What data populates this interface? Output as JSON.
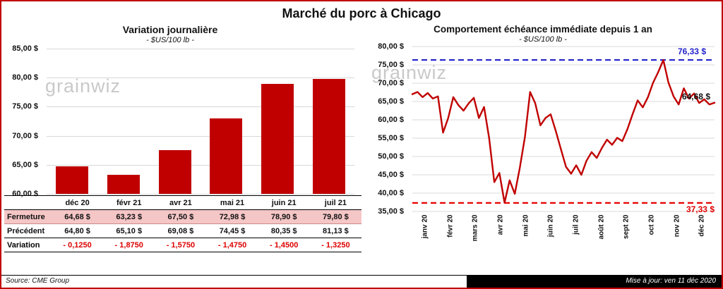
{
  "page": {
    "title": "Marché du porc à Chicago",
    "source": "Source: CME Group",
    "updated": "Mise à jour: ven 11 déc 2020",
    "watermark": "grainwiz"
  },
  "colors": {
    "accent_red": "#C00000",
    "dashed_blue": "#2323CC",
    "dashed_red": "#E80000",
    "pink_row": "#F5C6C6",
    "grid": "#D8D8D8"
  },
  "chart_data": [
    {
      "type": "bar",
      "title": "Variation journalière",
      "subtitle": "- $US/100 lb -",
      "categories": [
        "déc 20",
        "févr 21",
        "avr 21",
        "mai 21",
        "juin 21",
        "juil 21"
      ],
      "values": [
        64.68,
        63.23,
        67.5,
        72.98,
        78.9,
        79.8
      ],
      "ylim": [
        60,
        85
      ],
      "ytick_labels": [
        "85,00 $",
        "80,00 $",
        "75,00 $",
        "70,00 $",
        "65,00 $",
        "60,00 $"
      ],
      "bar_color": "#C00000",
      "grid": true,
      "legend": "none"
    },
    {
      "type": "line",
      "title": "Comportement échéance immédiate depuis 1 an",
      "subtitle": "- $US/100 lb -",
      "x_labels": [
        "janv 20",
        "févr 20",
        "mars 20",
        "avr 20",
        "mai 20",
        "juin 20",
        "juil 20",
        "août 20",
        "sept 20",
        "oct 20",
        "nov 20",
        "déc 20"
      ],
      "values": [
        67.0,
        67.6,
        66.2,
        67.3,
        65.8,
        66.4,
        56.5,
        60.5,
        66.2,
        64.0,
        62.5,
        64.5,
        66.0,
        60.5,
        63.5,
        55.0,
        43.0,
        45.5,
        37.4,
        43.5,
        39.8,
        47.0,
        55.5,
        67.6,
        64.5,
        58.5,
        60.5,
        61.5,
        57.0,
        52.0,
        47.2,
        45.3,
        47.6,
        45.0,
        48.8,
        51.2,
        49.6,
        52.3,
        54.6,
        53.2,
        55.1,
        54.2,
        57.5,
        61.5,
        65.3,
        63.4,
        66.2,
        70.1,
        73.0,
        76.33,
        70.2,
        66.4,
        64.2,
        68.6,
        65.8,
        67.2,
        64.6,
        65.6,
        64.2,
        64.68
      ],
      "ylim": [
        35,
        80
      ],
      "ytick_labels": [
        "80,00 $",
        "75,00 $",
        "70,00 $",
        "65,00 $",
        "60,00 $",
        "55,00 $",
        "50,00 $",
        "45,00 $",
        "40,00 $",
        "35,00 $"
      ],
      "line_color": "#C00000",
      "grid": true,
      "legend": "none",
      "annotations": {
        "high_label": "76,33 $",
        "high_value": 76.33,
        "low_label": "37,33 $",
        "low_value": 37.33,
        "last_label": "64,68 $",
        "last_value": 64.68
      }
    }
  ],
  "table": {
    "columns": [
      "déc 20",
      "févr 21",
      "avr 21",
      "mai 21",
      "juin 21",
      "juil 21"
    ],
    "rows": [
      {
        "key": "fermeture",
        "label": "Fermeture",
        "values": [
          "64,68  $",
          "63,23  $",
          "67,50  $",
          "72,98  $",
          "78,90  $",
          "79,80  $"
        ]
      },
      {
        "key": "precedent",
        "label": "Précédent",
        "values": [
          "64,80  $",
          "65,10  $",
          "69,08  $",
          "74,45  $",
          "80,35  $",
          "81,13  $"
        ]
      },
      {
        "key": "variation",
        "label": "Variation",
        "values": [
          "- 0,1250",
          "- 1,8750",
          "- 1,5750",
          "- 1,4750",
          "- 1,4500",
          "- 1,3250"
        ]
      }
    ]
  }
}
